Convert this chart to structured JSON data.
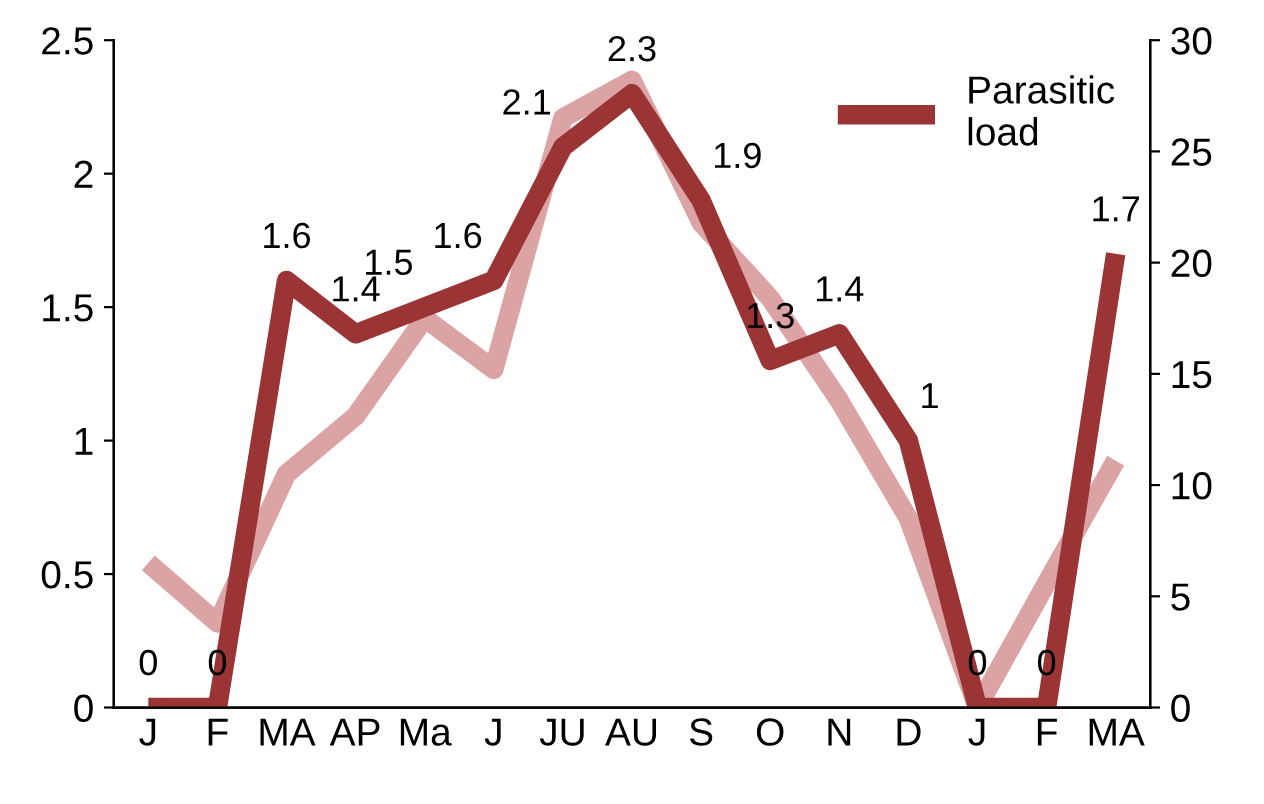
{
  "chart_data": {
    "type": "line",
    "categories": [
      "J",
      "F",
      "MA",
      "AP",
      "Ma",
      "J",
      "JU",
      "AU",
      "S",
      "O",
      "N",
      "D",
      "J",
      "F",
      "MA"
    ],
    "series": [
      {
        "name": "Parasitic\nload",
        "color": "#9b3434",
        "values": [
          0,
          0,
          1.6,
          1.4,
          1.5,
          1.6,
          2.1,
          2.3,
          1.9,
          1.3,
          1.4,
          1,
          0,
          0,
          1.7
        ],
        "value_labels": [
          "0",
          "0",
          "1.6",
          "1.4",
          "1.5",
          "1.6",
          "2.1",
          "2.3",
          "1.9",
          "1.3",
          "1.4",
          "1",
          "0",
          "0",
          "1.7"
        ]
      },
      {
        "color": "#dba3a3",
        "axis": "y2",
        "values": [
          6.5,
          3.8,
          10.5,
          13.1,
          17.5,
          15.2,
          26.5,
          28.2,
          21.8,
          18.4,
          13.8,
          8.5,
          0,
          5.6,
          11.1
        ]
      }
    ],
    "ylim": [
      0,
      2.5
    ],
    "yticks": [
      0,
      0.5,
      1,
      1.5,
      2,
      2.5
    ],
    "y2lim": [
      0,
      30
    ],
    "y2ticks": [
      0,
      5,
      10,
      15,
      20,
      25,
      30
    ],
    "grid": false,
    "legend": "top right",
    "marker": "none",
    "line_style": "solid"
  }
}
